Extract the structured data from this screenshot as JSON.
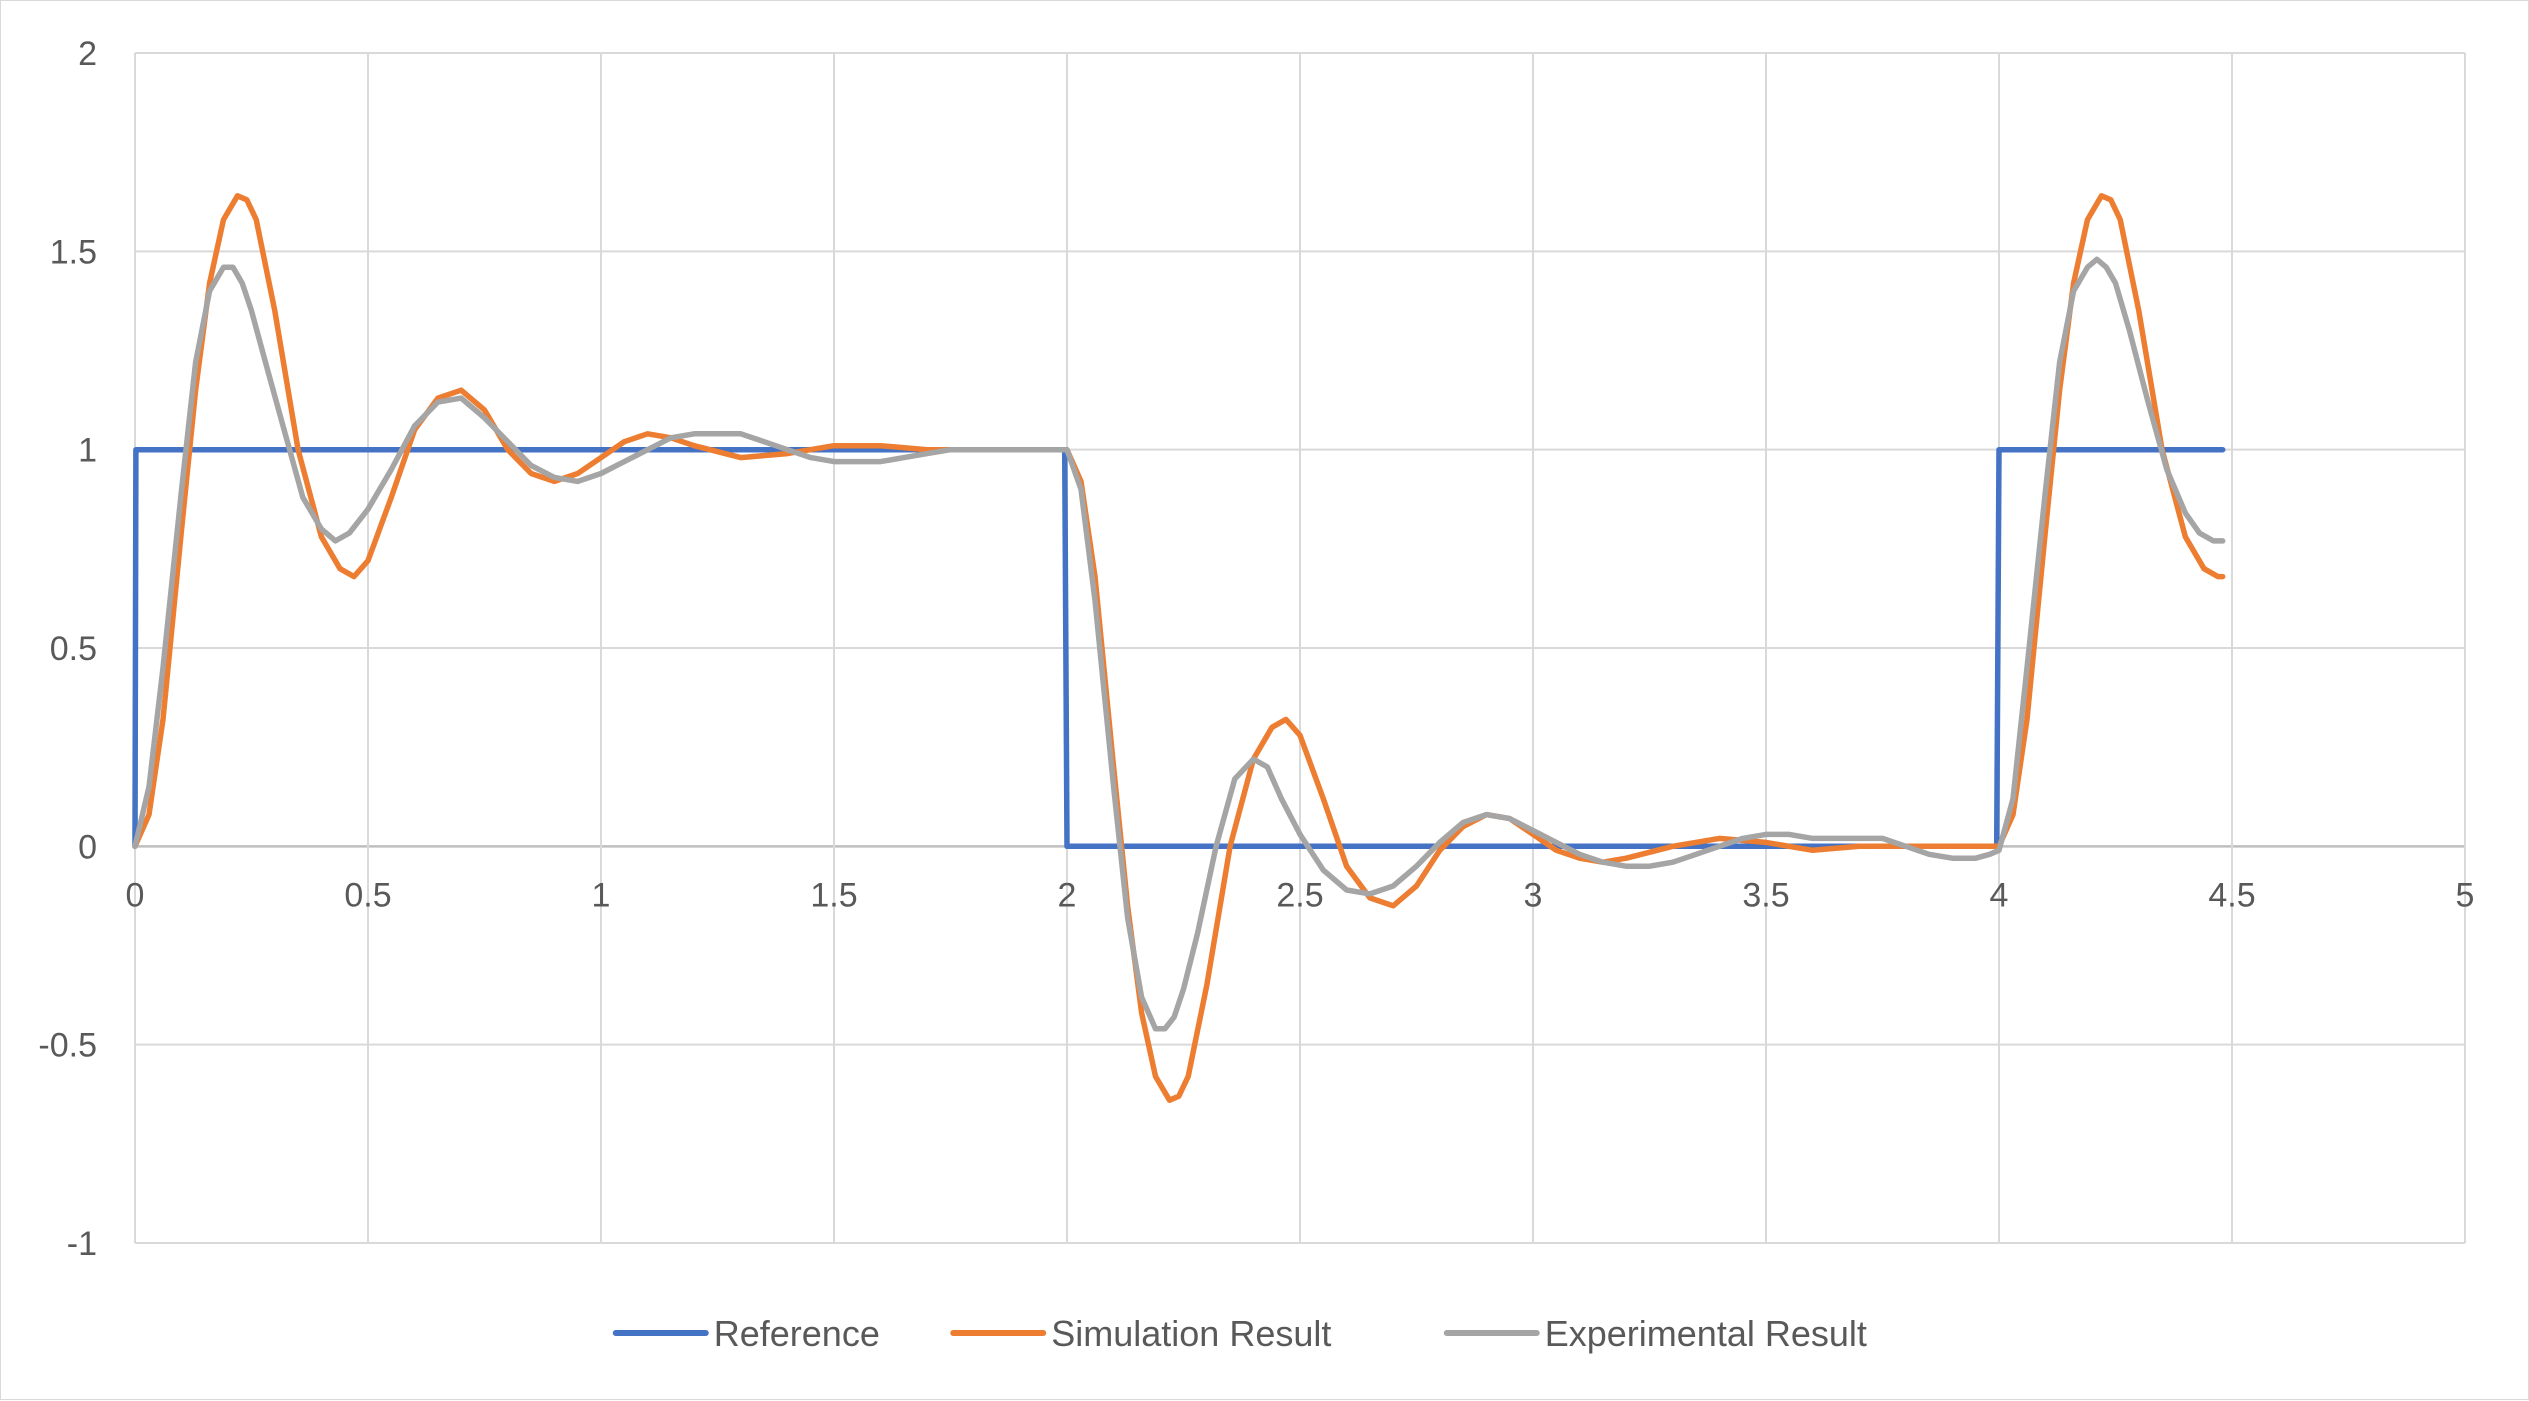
{
  "chart_data": {
    "type": "line",
    "title": "",
    "xlabel": "",
    "ylabel": "",
    "xlim": [
      0,
      5
    ],
    "ylim": [
      -1,
      2
    ],
    "x_ticks": [
      "0",
      "0.5",
      "1",
      "1.5",
      "2",
      "2.5",
      "3",
      "3.5",
      "4",
      "4.5",
      "5"
    ],
    "y_ticks": [
      "-1",
      "-0.5",
      "0",
      "0.5",
      "1",
      "1.5",
      "2"
    ],
    "grid": true,
    "legend_position": "bottom",
    "series": [
      {
        "name": "Reference",
        "color": "#4472C4",
        "x": [
          0,
          0.002,
          1.995,
          2.0,
          3.995,
          4.0,
          4.48
        ],
        "y": [
          0,
          1,
          1,
          0,
          0,
          1,
          1
        ]
      },
      {
        "name": "Simulation Result",
        "color": "#ED7D31",
        "x": [
          0,
          0.03,
          0.06,
          0.1,
          0.13,
          0.16,
          0.19,
          0.22,
          0.24,
          0.26,
          0.3,
          0.35,
          0.4,
          0.44,
          0.47,
          0.5,
          0.55,
          0.6,
          0.65,
          0.7,
          0.75,
          0.8,
          0.85,
          0.9,
          0.95,
          1.0,
          1.05,
          1.1,
          1.15,
          1.2,
          1.3,
          1.4,
          1.5,
          1.6,
          1.7,
          1.8,
          1.9,
          2.0,
          2.03,
          2.06,
          2.1,
          2.13,
          2.16,
          2.19,
          2.22,
          2.24,
          2.26,
          2.3,
          2.35,
          2.4,
          2.44,
          2.47,
          2.5,
          2.55,
          2.6,
          2.65,
          2.7,
          2.75,
          2.8,
          2.85,
          2.9,
          2.95,
          3.0,
          3.05,
          3.1,
          3.15,
          3.2,
          3.3,
          3.4,
          3.5,
          3.6,
          3.7,
          3.8,
          3.9,
          4.0,
          4.03,
          4.06,
          4.1,
          4.13,
          4.16,
          4.19,
          4.22,
          4.24,
          4.26,
          4.3,
          4.35,
          4.4,
          4.44,
          4.47,
          4.48
        ],
        "y": [
          0,
          0.08,
          0.32,
          0.8,
          1.15,
          1.42,
          1.58,
          1.64,
          1.63,
          1.58,
          1.35,
          1.0,
          0.78,
          0.7,
          0.68,
          0.72,
          0.88,
          1.05,
          1.13,
          1.15,
          1.1,
          1.0,
          0.94,
          0.92,
          0.94,
          0.98,
          1.02,
          1.04,
          1.03,
          1.01,
          0.98,
          0.99,
          1.01,
          1.01,
          1.0,
          1.0,
          1.0,
          1.0,
          0.92,
          0.68,
          0.2,
          -0.15,
          -0.42,
          -0.58,
          -0.64,
          -0.63,
          -0.58,
          -0.35,
          0.0,
          0.22,
          0.3,
          0.32,
          0.28,
          0.12,
          -0.05,
          -0.13,
          -0.15,
          -0.1,
          -0.01,
          0.05,
          0.08,
          0.07,
          0.03,
          -0.01,
          -0.03,
          -0.04,
          -0.03,
          0.0,
          0.02,
          0.01,
          -0.01,
          0.0,
          0.0,
          0.0,
          0.0,
          0.08,
          0.32,
          0.8,
          1.15,
          1.42,
          1.58,
          1.64,
          1.63,
          1.58,
          1.35,
          1.0,
          0.78,
          0.7,
          0.68,
          0.68
        ]
      },
      {
        "name": "Experimental Result",
        "color": "#A5A5A5",
        "x": [
          0,
          0.03,
          0.06,
          0.1,
          0.13,
          0.16,
          0.19,
          0.21,
          0.23,
          0.25,
          0.28,
          0.32,
          0.36,
          0.4,
          0.43,
          0.46,
          0.5,
          0.55,
          0.6,
          0.65,
          0.7,
          0.75,
          0.8,
          0.85,
          0.9,
          0.95,
          1.0,
          1.05,
          1.1,
          1.15,
          1.2,
          1.25,
          1.3,
          1.35,
          1.4,
          1.45,
          1.5,
          1.55,
          1.6,
          1.65,
          1.7,
          1.75,
          1.8,
          1.9,
          2.0,
          2.03,
          2.06,
          2.1,
          2.13,
          2.16,
          2.19,
          2.21,
          2.23,
          2.25,
          2.28,
          2.32,
          2.36,
          2.4,
          2.43,
          2.46,
          2.5,
          2.55,
          2.6,
          2.65,
          2.7,
          2.75,
          2.8,
          2.85,
          2.9,
          2.95,
          3.0,
          3.05,
          3.1,
          3.15,
          3.2,
          3.25,
          3.3,
          3.35,
          3.4,
          3.45,
          3.5,
          3.55,
          3.6,
          3.65,
          3.7,
          3.75,
          3.8,
          3.85,
          3.9,
          3.95,
          3.98,
          4.0,
          4.03,
          4.06,
          4.1,
          4.13,
          4.16,
          4.19,
          4.21,
          4.23,
          4.25,
          4.28,
          4.32,
          4.36,
          4.4,
          4.43,
          4.46,
          4.48
        ],
        "y": [
          0,
          0.15,
          0.45,
          0.9,
          1.22,
          1.4,
          1.46,
          1.46,
          1.42,
          1.35,
          1.22,
          1.05,
          0.88,
          0.8,
          0.77,
          0.79,
          0.85,
          0.95,
          1.06,
          1.12,
          1.13,
          1.08,
          1.02,
          0.96,
          0.93,
          0.92,
          0.94,
          0.97,
          1.0,
          1.03,
          1.04,
          1.04,
          1.04,
          1.02,
          1.0,
          0.98,
          0.97,
          0.97,
          0.97,
          0.98,
          0.99,
          1.0,
          1.0,
          1.0,
          1.0,
          0.9,
          0.62,
          0.15,
          -0.18,
          -0.38,
          -0.46,
          -0.46,
          -0.43,
          -0.36,
          -0.22,
          0.0,
          0.17,
          0.22,
          0.2,
          0.12,
          0.03,
          -0.06,
          -0.11,
          -0.12,
          -0.1,
          -0.05,
          0.01,
          0.06,
          0.08,
          0.07,
          0.04,
          0.01,
          -0.02,
          -0.04,
          -0.05,
          -0.05,
          -0.04,
          -0.02,
          0.0,
          0.02,
          0.03,
          0.03,
          0.02,
          0.02,
          0.02,
          0.02,
          0.0,
          -0.02,
          -0.03,
          -0.03,
          -0.02,
          -0.01,
          0.12,
          0.45,
          0.9,
          1.22,
          1.4,
          1.46,
          1.48,
          1.46,
          1.42,
          1.3,
          1.12,
          0.95,
          0.84,
          0.79,
          0.77,
          0.77
        ]
      }
    ]
  }
}
